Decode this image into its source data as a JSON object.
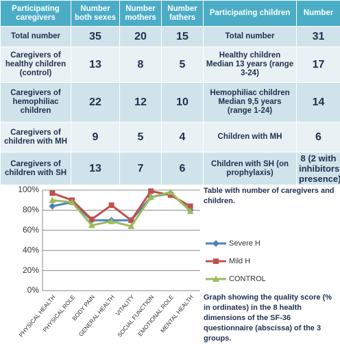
{
  "table": {
    "header": [
      "Participating caregivers",
      "Number both sexes",
      "Number mothers",
      "Number fathers",
      "Participating children",
      "Number"
    ],
    "rows": [
      [
        "Total number",
        "35",
        "20",
        "15",
        "Total number",
        "31"
      ],
      [
        "Caregivers of healthy children (control)",
        "13",
        "8",
        "5",
        "Healthy children Median 13 years (range 3-24)",
        "17"
      ],
      [
        "Caregivers of hemophiliac children",
        "22",
        "12",
        "10",
        "Hemophiliac children Median 9,5 years (range 1-24)",
        "14"
      ],
      [
        "Caregivers of children with MH",
        "9",
        "5",
        "4",
        "Children with MH",
        "6"
      ],
      [
        "Caregivers of children with SH",
        "13",
        "7",
        "6",
        "Children with SH (on prophylaxis)",
        "8 (2 with inhibitors presence)"
      ]
    ]
  },
  "captions": {
    "table": "Table with number of caregivers and children.",
    "graph": "Graph showing the quality score (% in ordinates) in the 8 health dimensions of the SF-36 questionnaire (abscissa) of the 3 groups."
  },
  "chart_data": {
    "type": "line",
    "categories": [
      "PHYSICAL HEALTH",
      "PHYSICAL ROLE",
      "BODY PAIN",
      "GENERAL HEALTH",
      "VITALITY",
      "SOCIAL FUNCTION",
      "EMOTIONAL ROLE",
      "MENTAL HEALTH"
    ],
    "series": [
      {
        "name": "Severe H",
        "color": "#4f81bd",
        "marker": "diamond",
        "values": [
          84,
          88,
          70,
          70,
          70,
          93,
          97,
          80
        ]
      },
      {
        "name": "Mild H",
        "color": "#c0504d",
        "marker": "square",
        "values": [
          97,
          90,
          71,
          85,
          70,
          99,
          95,
          84
        ]
      },
      {
        "name": "CONTROL",
        "color": "#9bbb59",
        "marker": "triangle",
        "values": [
          90,
          88,
          65,
          69,
          64,
          93,
          98,
          79
        ]
      }
    ],
    "ylim": [
      0,
      100
    ],
    "yticks": [
      {
        "value": 0,
        "label": "0%"
      },
      {
        "value": 20,
        "label": "20%"
      },
      {
        "value": 40,
        "label": "40%"
      },
      {
        "value": 60,
        "label": "60%"
      },
      {
        "value": 80,
        "label": "80%"
      },
      {
        "value": 100,
        "label": "100%"
      }
    ],
    "grid": true,
    "legend": "right"
  }
}
